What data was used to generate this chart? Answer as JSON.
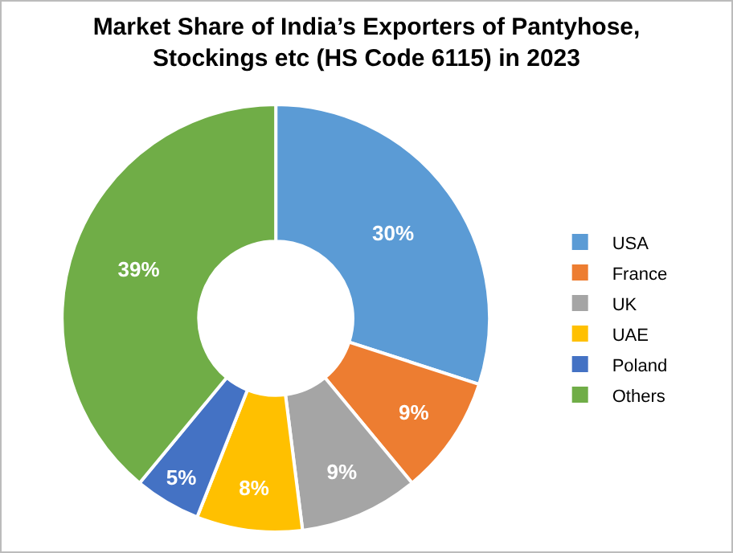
{
  "chart_data": {
    "type": "donut",
    "title": "Market Share of India’s Exporters of Pantyhose, Stockings etc (HS Code 6115) in 2023",
    "categories": [
      "USA",
      "France",
      "UK",
      "UAE",
      "Poland",
      "Others"
    ],
    "values": [
      30,
      9,
      9,
      8,
      5,
      39
    ],
    "value_labels": [
      "30%",
      "9%",
      "9%",
      "8%",
      "5%",
      "39%"
    ],
    "colors": [
      "#5b9bd5",
      "#ed7d31",
      "#a5a5a5",
      "#ffc000",
      "#4472c4",
      "#70ad47"
    ],
    "legend": "right"
  }
}
